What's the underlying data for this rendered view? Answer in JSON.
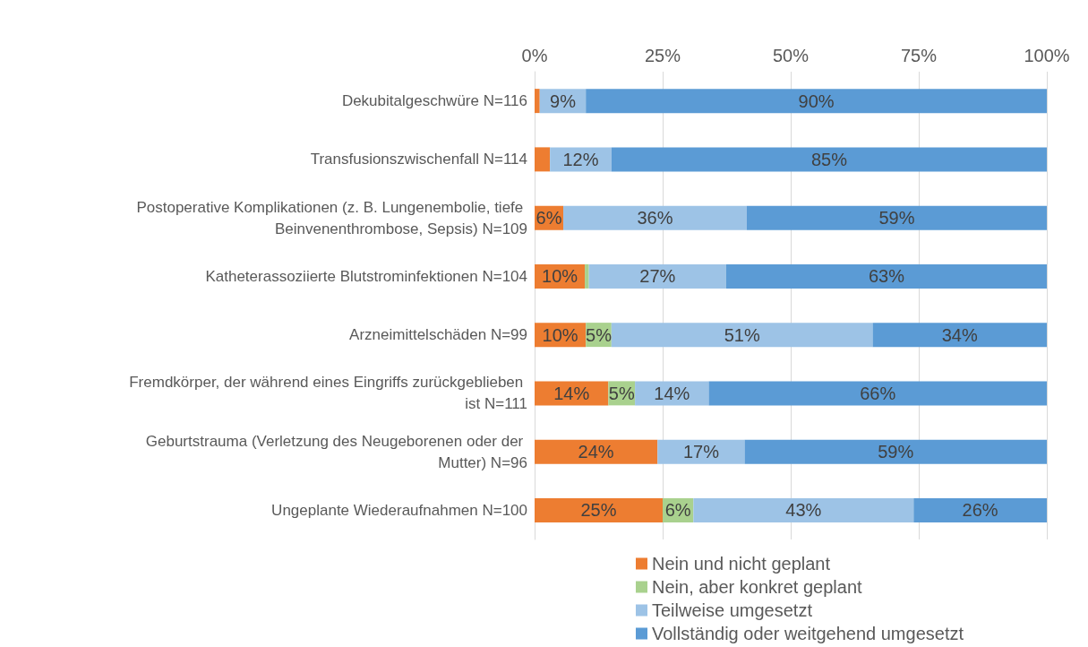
{
  "chart_data": {
    "type": "bar",
    "orientation": "horizontal",
    "stacked": true,
    "categories": [
      "Dekubitalgeschwüre N=116",
      "Transfusionszwischenfall N=114",
      "Postoperative Komplikationen (z. B. Lungenembolie, tiefe Beinvenenthrombose, Sepsis) N=109",
      "Katheterassoziierte Blutstrominfektionen N=104",
      "Arzneimittelschäden N=99",
      "Fremdkörper, der während eines Eingriffs zurückgeblieben ist N=111",
      "Geburtstrauma (Verletzung des Neugeborenen oder der Mutter) N=96",
      "Ungeplante Wiederaufnahmen N=100"
    ],
    "series": [
      {
        "name": "Nein und nicht geplant",
        "color": "#ed7d31",
        "values": [
          1,
          3,
          5.6,
          9.8,
          10,
          14.4,
          24,
          25
        ],
        "value_labels": [
          null,
          null,
          "6%",
          "10%",
          "10%",
          "14%",
          "24%",
          "25%"
        ]
      },
      {
        "name": "Nein, aber konkret geplant",
        "color": "#a9d18e",
        "values": [
          0,
          0,
          0,
          0.8,
          5,
          5.2,
          0,
          6
        ],
        "value_labels": [
          null,
          null,
          null,
          null,
          "5%",
          "5%",
          null,
          "6%"
        ]
      },
      {
        "name": "Teilweise umgesetzt",
        "color": "#9dc3e6",
        "values": [
          9,
          12,
          35.8,
          26.8,
          51,
          14.4,
          17,
          43
        ],
        "value_labels": [
          "9%",
          "12%",
          "36%",
          "27%",
          "51%",
          "14%",
          "17%",
          "43%"
        ]
      },
      {
        "name": "Vollständig oder weitgehend umgesetzt",
        "color": "#5b9bd5",
        "values": [
          90,
          85,
          58.6,
          62.6,
          34,
          66,
          59,
          26
        ],
        "value_labels": [
          "90%",
          "85%",
          "59%",
          "63%",
          "34%",
          "66%",
          "59%",
          "26%"
        ]
      }
    ],
    "xlim": [
      0,
      100
    ],
    "xticks": [
      {
        "value": 0,
        "label": "0%"
      },
      {
        "value": 25,
        "label": "25%"
      },
      {
        "value": 50,
        "label": "50%"
      },
      {
        "value": 75,
        "label": "75%"
      },
      {
        "value": 100,
        "label": "100%"
      }
    ],
    "grid": "x",
    "legend": "bottom"
  }
}
